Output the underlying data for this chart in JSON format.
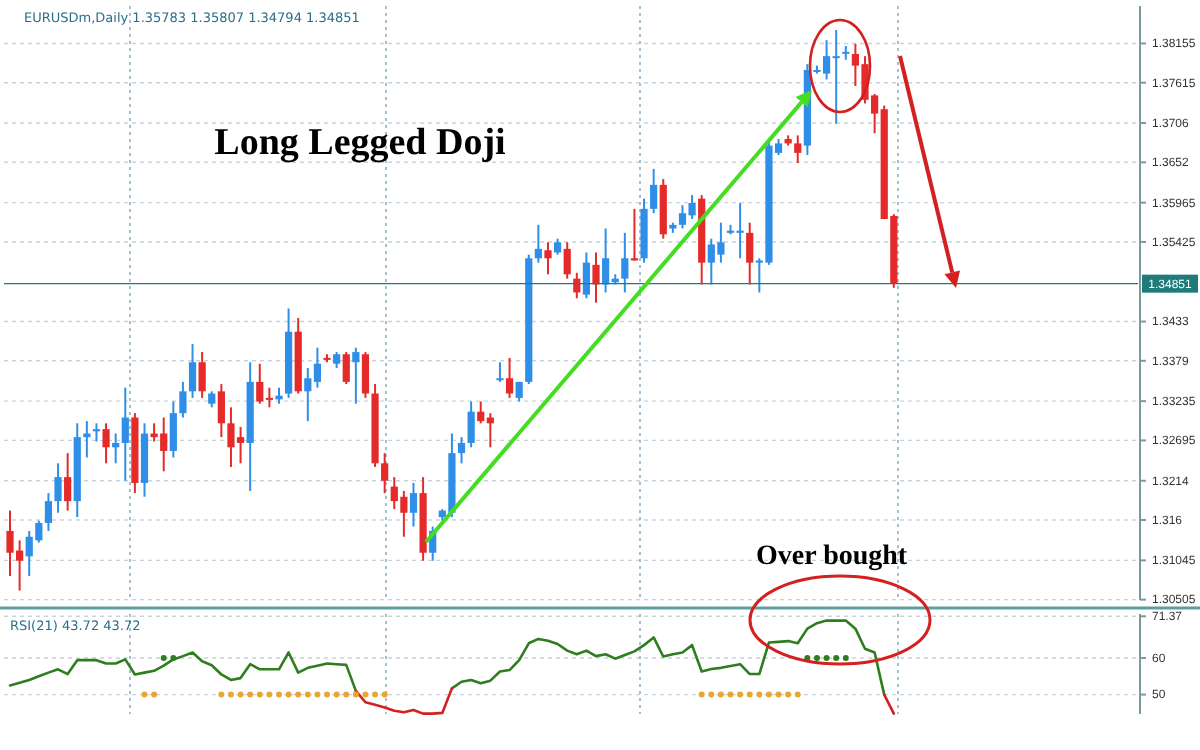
{
  "chart_data": [
    {
      "type": "candlestick",
      "title": "Long Legged Doji",
      "annotations": [
        "EURUSDm,Daily 1.35783 1.35807 1.34794 1.34851"
      ],
      "categories": [
        null,
        null,
        null,
        null,
        null,
        null,
        null,
        null,
        null,
        null,
        null,
        null,
        null,
        null,
        null,
        null,
        null,
        null,
        null,
        null,
        null,
        null,
        null,
        null,
        null,
        null,
        null,
        null,
        null,
        null,
        null,
        null,
        null,
        null,
        null,
        null,
        null,
        null,
        null,
        null,
        null,
        null,
        null,
        null,
        null,
        null,
        null,
        null,
        null,
        null,
        null,
        null,
        null,
        null,
        null,
        null,
        null,
        null,
        null,
        null,
        null,
        null,
        null,
        null,
        null,
        null,
        null,
        null,
        null,
        null,
        null,
        null,
        null,
        null,
        null,
        null,
        null,
        null,
        null,
        null,
        null,
        null,
        null,
        null,
        null,
        null,
        null,
        null,
        null,
        null,
        null,
        null,
        null,
        null,
        null,
        null,
        null,
        null,
        null,
        null,
        null,
        null,
        null,
        null,
        null,
        null,
        null,
        null,
        null,
        null,
        null,
        null,
        null,
        null,
        null,
        null,
        null,
        null
      ],
      "ohlc": [
        [
          1.3145,
          1.3173,
          1.3083,
          1.3115
        ],
        [
          1.3118,
          1.3132,
          1.3063,
          1.3104
        ],
        [
          1.311,
          1.3145,
          1.3083,
          1.3137
        ],
        [
          1.3132,
          1.3159,
          1.3129,
          1.3156
        ],
        [
          1.3156,
          1.3197,
          1.3145,
          1.3186
        ],
        [
          1.3186,
          1.3238,
          1.317,
          1.3219
        ],
        [
          1.3219,
          1.3252,
          1.3173,
          1.3186
        ],
        [
          1.3186,
          1.3293,
          1.3164,
          1.3274
        ],
        [
          1.3274,
          1.3296,
          1.3246,
          1.3279
        ],
        [
          1.3282,
          1.3293,
          1.3268,
          1.3285
        ],
        [
          1.3285,
          1.3293,
          1.3238,
          1.326
        ],
        [
          1.326,
          1.3279,
          1.3238,
          1.3266
        ],
        [
          1.3266,
          1.3342,
          1.3214,
          1.3301
        ],
        [
          1.3301,
          1.3307,
          1.3197,
          1.3211
        ],
        [
          1.3211,
          1.3293,
          1.3192,
          1.3279
        ],
        [
          1.3279,
          1.3293,
          1.3268,
          1.3274
        ],
        [
          1.3279,
          1.3301,
          1.3227,
          1.3255
        ],
        [
          1.3255,
          1.3323,
          1.3246,
          1.3307
        ],
        [
          1.3307,
          1.335,
          1.3301,
          1.3337
        ],
        [
          1.3337,
          1.3402,
          1.3328,
          1.3377
        ],
        [
          1.3377,
          1.3391,
          1.3328,
          1.3337
        ],
        [
          1.332,
          1.3337,
          1.3315,
          1.3334
        ],
        [
          1.3337,
          1.3347,
          1.3274,
          1.3293
        ],
        [
          1.3293,
          1.3315,
          1.3233,
          1.326
        ],
        [
          1.3274,
          1.3288,
          1.3238,
          1.3266
        ],
        [
          1.3266,
          1.3377,
          1.32,
          1.335
        ],
        [
          1.335,
          1.3375,
          1.332,
          1.3323
        ],
        [
          1.3328,
          1.3342,
          1.3315,
          1.3326
        ],
        [
          1.3326,
          1.3342,
          1.332,
          1.3331
        ],
        [
          1.3334,
          1.3451,
          1.3328,
          1.3419
        ],
        [
          1.3419,
          1.3438,
          1.3334,
          1.3337
        ],
        [
          1.3337,
          1.3369,
          1.3296,
          1.3355
        ],
        [
          1.335,
          1.3397,
          1.3342,
          1.3375
        ],
        [
          1.3383,
          1.3388,
          1.3377,
          1.3382
        ],
        [
          1.3375,
          1.3391,
          1.3369,
          1.3388
        ],
        [
          1.3388,
          1.3391,
          1.3347,
          1.335
        ],
        [
          1.3377,
          1.3397,
          1.332,
          1.3391
        ],
        [
          1.3388,
          1.3391,
          1.3328,
          1.3334
        ],
        [
          1.3334,
          1.3347,
          1.3233,
          1.3238
        ],
        [
          1.3238,
          1.3252,
          1.3197,
          1.3214
        ],
        [
          1.3206,
          1.3219,
          1.3175,
          1.3186
        ],
        [
          1.3192,
          1.32,
          1.3137,
          1.317
        ],
        [
          1.317,
          1.3211,
          1.3151,
          1.3197
        ],
        [
          1.3197,
          1.3219,
          1.3104,
          1.3115
        ],
        [
          1.3115,
          1.3151,
          1.3104,
          1.3145
        ],
        [
          1.3164,
          1.3175,
          1.3159,
          1.3173
        ],
        [
          1.317,
          1.3279,
          1.3164,
          1.3252
        ],
        [
          1.3252,
          1.3274,
          1.3238,
          1.3266
        ],
        [
          1.3266,
          1.3323,
          1.326,
          1.3309
        ],
        [
          1.3309,
          1.3323,
          1.3293,
          1.3296
        ],
        [
          1.3301,
          1.3307,
          1.326,
          1.3293
        ],
        [
          1.3353,
          1.3377,
          1.335,
          1.3355
        ],
        [
          1.3355,
          1.3383,
          1.3328,
          1.3334
        ],
        [
          1.3328,
          1.335,
          1.3323,
          1.335
        ],
        [
          1.335,
          1.3525,
          1.3347,
          1.352
        ],
        [
          1.352,
          1.3566,
          1.3514,
          1.3533
        ],
        [
          1.3531,
          1.3542,
          1.3498,
          1.352
        ],
        [
          1.3528,
          1.3547,
          1.3525,
          1.3542
        ],
        [
          1.3533,
          1.3542,
          1.3492,
          1.3498
        ],
        [
          1.3492,
          1.35,
          1.3465,
          1.3473
        ],
        [
          1.347,
          1.3528,
          1.3465,
          1.3514
        ],
        [
          1.3511,
          1.3528,
          1.3459,
          1.3484
        ],
        [
          1.3484,
          1.3561,
          1.3473,
          1.352
        ],
        [
          1.3487,
          1.3498,
          1.3484,
          1.3492
        ],
        [
          1.3492,
          1.3555,
          1.3473,
          1.352
        ],
        [
          1.352,
          1.3588,
          1.3517,
          1.3517
        ],
        [
          1.352,
          1.3602,
          1.3514,
          1.3588
        ],
        [
          1.3588,
          1.3643,
          1.3582,
          1.3621
        ],
        [
          1.3621,
          1.3629,
          1.3547,
          1.3553
        ],
        [
          1.3561,
          1.3569,
          1.3555,
          1.3566
        ],
        [
          1.3566,
          1.3593,
          1.3561,
          1.3582
        ],
        [
          1.3579,
          1.3607,
          1.3574,
          1.3596
        ],
        [
          1.3602,
          1.3607,
          1.3484,
          1.3514
        ],
        [
          1.3514,
          1.3547,
          1.3484,
          1.3539
        ],
        [
          1.3525,
          1.3569,
          1.3514,
          1.3542
        ],
        [
          1.3555,
          1.3566,
          1.3553,
          1.3558
        ],
        [
          1.3555,
          1.3596,
          1.352,
          1.3558
        ],
        [
          1.3555,
          1.3569,
          1.3484,
          1.3514
        ],
        [
          1.3514,
          1.352,
          1.3473,
          1.3517
        ],
        [
          1.3514,
          1.3684,
          1.3511,
          1.3675
        ],
        [
          1.3665,
          1.3684,
          1.3662,
          1.3678
        ],
        [
          1.3684,
          1.3689,
          1.3675,
          1.3678
        ],
        [
          1.3678,
          1.3689,
          1.3651,
          1.3665
        ],
        [
          1.3675,
          1.3787,
          1.3662,
          1.3779
        ],
        [
          1.3779,
          1.3785,
          1.3774,
          1.3779
        ],
        [
          1.3774,
          1.382,
          1.3766,
          1.3798
        ],
        [
          1.3798,
          1.3834,
          1.3705,
          1.3798
        ],
        [
          1.3804,
          1.3812,
          1.3793,
          1.3804
        ],
        [
          1.3801,
          1.3815,
          1.3757,
          1.3785
        ],
        [
          1.3787,
          1.3798,
          1.3733,
          1.3738
        ],
        [
          1.3744,
          1.3746,
          1.3692,
          1.3719
        ],
        [
          1.3725,
          1.373,
          1.3574,
          1.3574
        ],
        [
          1.35783,
          1.35807,
          1.34794,
          1.34851
        ],
        null,
        null,
        null,
        null,
        null,
        null,
        null,
        null,
        null,
        null,
        null,
        null,
        null,
        null,
        null,
        null,
        null,
        null,
        null,
        null,
        null,
        null,
        null,
        null,
        null
      ],
      "colors": [
        "#e52a2a",
        "#e52a2a",
        "#2f8fe8",
        "#2f8fe8",
        "#2f8fe8",
        "#2f8fe8",
        "#e52a2a",
        "#2f8fe8",
        "#2f8fe8",
        "#2f8fe8",
        "#e52a2a",
        "#2f8fe8",
        "#2f8fe8",
        "#e52a2a",
        "#2f8fe8",
        "#e52a2a",
        "#e52a2a",
        "#2f8fe8",
        "#2f8fe8",
        "#2f8fe8",
        "#e52a2a",
        "#2f8fe8",
        "#e52a2a",
        "#e52a2a",
        "#e52a2a",
        "#2f8fe8",
        "#e52a2a",
        "#e52a2a",
        "#2f8fe8",
        "#2f8fe8",
        "#e52a2a",
        "#2f8fe8",
        "#2f8fe8",
        "#e52a2a",
        "#2f8fe8",
        "#e52a2a",
        "#2f8fe8",
        "#e52a2a",
        "#e52a2a",
        "#e52a2a",
        "#e52a2a",
        "#e52a2a",
        "#2f8fe8",
        "#e52a2a",
        "#2f8fe8",
        "#2f8fe8",
        "#2f8fe8",
        "#2f8fe8",
        "#2f8fe8",
        "#e52a2a",
        "#e52a2a",
        "#2f8fe8",
        "#e52a2a",
        "#2f8fe8",
        "#2f8fe8",
        "#2f8fe8",
        "#e52a2a",
        "#2f8fe8",
        "#e52a2a",
        "#e52a2a",
        "#2f8fe8",
        "#e52a2a",
        "#2f8fe8",
        "#2f8fe8",
        "#2f8fe8",
        "#e52a2a",
        "#2f8fe8",
        "#2f8fe8",
        "#e52a2a",
        "#2f8fe8",
        "#2f8fe8",
        "#2f8fe8",
        "#e52a2a",
        "#2f8fe8",
        "#2f8fe8",
        "#2f8fe8",
        "#2f8fe8",
        "#e52a2a",
        "#2f8fe8",
        "#2f8fe8",
        "#2f8fe8",
        "#e52a2a",
        "#e52a2a",
        "#2f8fe8",
        "#2f8fe8",
        "#2f8fe8",
        "#2f8fe8",
        "#2f8fe8",
        "#e52a2a",
        "#e52a2a",
        "#e52a2a",
        "#e52a2a",
        "#e52a2a",
        null,
        null,
        null,
        null,
        null,
        null,
        null,
        null,
        null,
        null,
        null,
        null,
        null,
        null,
        null,
        null,
        null,
        null,
        null,
        null,
        null,
        null,
        null,
        null,
        null
      ],
      "ylim": [
        1.305,
        1.3867
      ],
      "yticks": [
        1.38155,
        1.37615,
        1.3706,
        1.3652,
        1.35965,
        1.35425,
        1.3433,
        1.3379,
        1.33235,
        1.32695,
        1.3214,
        1.316,
        1.31045,
        1.30505
      ],
      "ref_lines": [
        {
          "axis": "y",
          "value": 1.34851,
          "label": "1.34851",
          "color": "#1f7a7a"
        }
      ],
      "grid": "y",
      "tick_labels": "y"
    },
    {
      "type": "line",
      "annotations": [
        "RSI(21) 43.72 43.72",
        "Over bought"
      ],
      "categories": [
        null,
        null,
        null,
        null,
        null,
        null,
        null,
        null,
        null,
        null,
        null,
        null,
        null,
        null,
        null,
        null,
        null,
        null,
        null,
        null,
        null,
        null,
        null,
        null,
        null,
        null,
        null,
        null,
        null,
        null,
        null,
        null,
        null,
        null,
        null,
        null,
        null,
        null,
        null,
        null,
        null,
        null,
        null,
        null,
        null,
        null,
        null,
        null,
        null,
        null,
        null,
        null,
        null,
        null,
        null,
        null,
        null,
        null,
        null,
        null,
        null,
        null,
        null,
        null,
        null,
        null,
        null,
        null,
        null,
        null,
        null,
        null,
        null,
        null,
        null,
        null,
        null,
        null,
        null,
        null,
        null,
        null,
        null,
        null,
        null,
        null,
        null,
        null,
        null,
        null,
        null,
        null,
        null,
        null,
        null,
        null,
        null,
        null,
        null,
        null,
        null,
        null,
        null,
        null,
        null,
        null,
        null,
        null,
        null,
        null,
        null,
        null,
        null,
        null,
        null,
        null,
        null,
        null
      ],
      "series": [
        {
          "color": "#2e7d1e",
          "values": [
            52.5,
            53.2,
            54,
            55,
            56,
            56.9,
            55.6,
            59.4,
            59.4,
            59.4,
            58.5,
            58.5,
            59.6,
            55.5,
            56,
            56.5,
            57.9,
            59.6,
            60.5,
            61.5,
            59.1,
            58,
            55.5,
            54,
            54.5,
            58.3,
            56.9,
            56.9,
            56.9,
            61.5,
            56,
            57.3,
            57.9,
            58.5,
            58.3,
            58.1,
            51,
            null,
            null,
            null,
            null,
            null,
            null,
            null,
            null,
            null,
            51.7,
            53.5,
            54,
            53.1,
            53.8,
            56.3,
            56.7,
            59.4,
            64,
            65.2,
            64.7,
            63.8,
            62,
            61,
            62,
            60.5,
            61,
            59.8,
            60.8,
            61.8,
            63.5,
            65.6,
            60.4,
            61,
            61.5,
            63.5,
            56.3,
            57,
            57.3,
            57.8,
            58.3,
            55.6,
            55.6,
            64.2,
            64.4,
            64.6,
            64,
            68,
            69.5,
            70.2,
            70.2,
            70.2,
            68,
            62.5,
            61.5,
            50,
            null,
            null,
            null,
            null,
            null,
            null,
            null,
            null,
            null,
            null,
            null,
            null,
            null,
            null,
            null,
            null,
            null,
            null,
            null,
            null,
            null,
            null,
            null,
            null,
            null,
            null
          ]
        },
        {
          "color": "#d42020",
          "values": [
            null,
            null,
            null,
            null,
            null,
            null,
            null,
            null,
            null,
            null,
            null,
            null,
            null,
            null,
            null,
            null,
            null,
            null,
            null,
            null,
            null,
            null,
            null,
            null,
            null,
            null,
            null,
            null,
            null,
            null,
            null,
            null,
            null,
            null,
            null,
            null,
            51,
            47.9,
            47.2,
            46.5,
            45.6,
            45.2,
            45.8,
            44.8,
            44.8,
            45,
            51.7,
            null,
            null,
            null,
            null,
            null,
            null,
            null,
            null,
            null,
            null,
            null,
            null,
            null,
            null,
            null,
            null,
            null,
            null,
            null,
            null,
            null,
            null,
            null,
            null,
            null,
            null,
            null,
            null,
            null,
            null,
            null,
            null,
            null,
            null,
            null,
            null,
            null,
            null,
            null,
            null,
            null,
            null,
            null,
            null,
            50,
            44.8,
            null,
            null,
            null,
            null,
            null,
            null,
            null,
            null,
            null,
            null,
            null,
            null,
            null,
            null,
            null,
            null,
            null,
            null,
            null,
            null,
            null,
            null,
            null,
            null,
            null
          ]
        },
        {
          "type": "scatter",
          "color": "#e8a735",
          "values": [
            null,
            null,
            null,
            null,
            null,
            null,
            null,
            null,
            null,
            null,
            null,
            null,
            null,
            null,
            50,
            50,
            null,
            null,
            null,
            null,
            null,
            null,
            50,
            50,
            50,
            50,
            50,
            50,
            50,
            50,
            50,
            50,
            50,
            50,
            50,
            50,
            50,
            50,
            50,
            50,
            null,
            null,
            null,
            null,
            null,
            null,
            null,
            null,
            null,
            null,
            null,
            null,
            null,
            null,
            null,
            null,
            null,
            null,
            null,
            null,
            null,
            null,
            null,
            null,
            null,
            null,
            null,
            null,
            null,
            null,
            null,
            null,
            50,
            50,
            50,
            50,
            50,
            50,
            50,
            50,
            50,
            50,
            50,
            null,
            null,
            null,
            null,
            null,
            null,
            null,
            null,
            null,
            null,
            null,
            null,
            null,
            null,
            null,
            null,
            null,
            null,
            null,
            null,
            null,
            null,
            null,
            null,
            null,
            null,
            null,
            null,
            null,
            null,
            null,
            null,
            null,
            null,
            null
          ]
        },
        {
          "type": "scatter",
          "color": "#2e7d1e",
          "values": [
            null,
            null,
            null,
            null,
            null,
            null,
            null,
            null,
            null,
            null,
            null,
            null,
            null,
            null,
            null,
            null,
            60,
            60,
            null,
            null,
            null,
            null,
            null,
            null,
            null,
            null,
            null,
            null,
            null,
            null,
            null,
            null,
            null,
            null,
            null,
            null,
            null,
            null,
            null,
            null,
            null,
            null,
            null,
            null,
            null,
            null,
            null,
            null,
            null,
            null,
            null,
            null,
            null,
            null,
            null,
            null,
            null,
            null,
            null,
            null,
            null,
            null,
            null,
            null,
            null,
            null,
            null,
            null,
            null,
            null,
            null,
            null,
            null,
            null,
            null,
            null,
            null,
            null,
            null,
            null,
            null,
            null,
            null,
            60,
            60,
            60,
            60,
            60,
            null,
            null,
            null,
            null,
            null,
            null,
            null,
            null,
            null,
            null,
            null,
            null,
            null,
            null,
            null,
            null,
            null,
            null,
            null,
            null,
            null,
            null,
            null,
            null,
            null,
            null,
            null,
            null,
            null,
            null
          ]
        }
      ],
      "ylim": [
        44.7,
        72
      ],
      "yticks": [
        50,
        60,
        71.37
      ],
      "grid": "y",
      "tick_labels": "y"
    }
  ]
}
